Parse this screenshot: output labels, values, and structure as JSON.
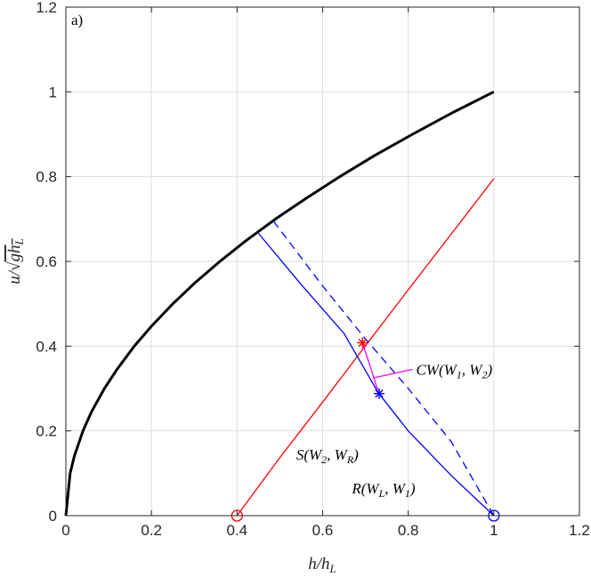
{
  "chart_data": {
    "type": "line",
    "panel_label": "a)",
    "xlabel": "h/h_L",
    "ylabel": "u/√(gh_L)",
    "xlim": [
      0,
      1.2
    ],
    "ylim": [
      0,
      1.2
    ],
    "xticks": [
      "0",
      "0.2",
      "0.4",
      "0.6",
      "0.8",
      "1",
      "1.2"
    ],
    "yticks": [
      "0",
      "0.2",
      "0.4",
      "0.6",
      "0.8",
      "1",
      "1.2"
    ],
    "grid": true,
    "series": [
      {
        "color": "#000000",
        "style": "solid-thick",
        "points": [
          [
            0,
            0
          ],
          [
            0.01,
            0.1
          ],
          [
            0.02,
            0.141
          ],
          [
            0.04,
            0.2
          ],
          [
            0.06,
            0.245
          ],
          [
            0.09,
            0.3
          ],
          [
            0.12,
            0.346
          ],
          [
            0.16,
            0.4
          ],
          [
            0.2,
            0.447
          ],
          [
            0.25,
            0.5
          ],
          [
            0.3,
            0.548
          ],
          [
            0.36,
            0.6
          ],
          [
            0.42,
            0.648
          ],
          [
            0.49,
            0.7
          ],
          [
            0.56,
            0.748
          ],
          [
            0.64,
            0.8
          ],
          [
            0.72,
            0.849
          ],
          [
            0.81,
            0.9
          ],
          [
            0.9,
            0.949
          ],
          [
            1.0,
            1.0
          ]
        ]
      },
      {
        "color": "#ff0000",
        "style": "solid",
        "points": [
          [
            0.4,
            0
          ],
          [
            0.5,
            0.137
          ],
          [
            0.6,
            0.268
          ],
          [
            0.7,
            0.401
          ],
          [
            0.8,
            0.533
          ],
          [
            0.9,
            0.664
          ],
          [
            1.0,
            0.795
          ]
        ]
      },
      {
        "color": "#0000ff",
        "style": "solid",
        "points": [
          [
            0.45,
            0.666
          ],
          [
            0.55,
            0.545
          ],
          [
            0.65,
            0.43
          ],
          [
            0.73,
            0.29
          ],
          [
            0.8,
            0.2
          ],
          [
            0.9,
            0.095
          ],
          [
            1.0,
            0.0
          ]
        ]
      },
      {
        "color": "#0000ff",
        "style": "dashed",
        "points": [
          [
            0.485,
            0.695
          ],
          [
            0.6,
            0.542
          ],
          [
            0.7,
            0.417
          ],
          [
            0.8,
            0.3
          ],
          [
            0.9,
            0.175
          ],
          [
            1.0,
            0.0
          ]
        ]
      },
      {
        "color": "#ff00ff",
        "style": "solid",
        "points": [
          [
            0.693,
            0.408
          ],
          [
            0.72,
            0.325
          ],
          [
            0.73,
            0.29
          ]
        ]
      }
    ],
    "markers": [
      {
        "x": 0.4,
        "y": 0.0,
        "shape": "circle",
        "color": "#ff0000"
      },
      {
        "x": 1.0,
        "y": 0.0,
        "shape": "circle",
        "color": "#0000ff"
      },
      {
        "x": 0.693,
        "y": 0.408,
        "shape": "star",
        "color": "#ff0000"
      },
      {
        "x": 0.732,
        "y": 0.288,
        "shape": "star",
        "color": "#0000ff"
      }
    ],
    "annotations": [
      {
        "text": "CW(W_1, W_2)",
        "x": 0.81,
        "y": 0.345
      },
      {
        "text": "S(W_2, W_R)",
        "x": 0.53,
        "y": 0.145
      },
      {
        "text": "R(W_L, W_1)",
        "x": 0.66,
        "y": 0.065
      }
    ],
    "annotation_leader": {
      "color": "#ff00ff",
      "points": [
        [
          0.718,
          0.325
        ],
        [
          0.81,
          0.345
        ]
      ]
    }
  }
}
